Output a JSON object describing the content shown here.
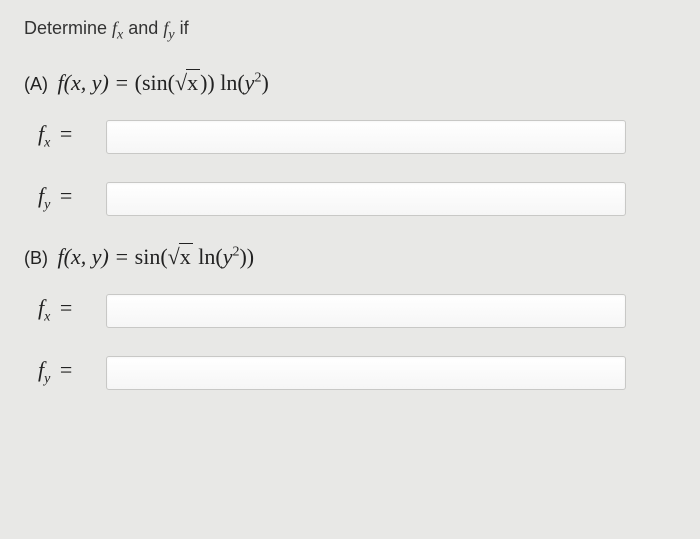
{
  "prompt": {
    "pre": "Determine ",
    "fx_sym": "f",
    "fx_sub": "x",
    "mid": " and ",
    "fy_sym": "f",
    "fy_sub": "y",
    "post": " if"
  },
  "partA": {
    "label": "(A)",
    "expr_lhs": "f(x, y) = ",
    "expr_open": "(",
    "sin": "sin",
    "sqrt_arg": "x",
    "expr_close": ")",
    "ln": "ln",
    "ln_arg_open": "(",
    "y": "y",
    "exp2": "2",
    "ln_arg_close": ")"
  },
  "partB": {
    "label": "(B)",
    "expr_lhs": "f(x, y) = ",
    "sin": "sin",
    "open": "(",
    "sqrt_arg": "x",
    "ln": "ln",
    "ln_open": "(",
    "y": "y",
    "exp2": "2",
    "ln_close": ")",
    "close": ")"
  },
  "rows": {
    "fx_label": "f",
    "fx_sub": "x",
    "fy_label": "f",
    "fy_sub": "y",
    "eq": "="
  },
  "answers": {
    "A_fx": "",
    "A_fy": "",
    "B_fx": "",
    "B_fy": ""
  },
  "colors": {
    "page_bg": "#e8e8e6",
    "text": "#222222",
    "input_bg_top": "#ffffff",
    "input_bg_bottom": "#f6f6f6",
    "input_border": "#c8c8c6"
  }
}
